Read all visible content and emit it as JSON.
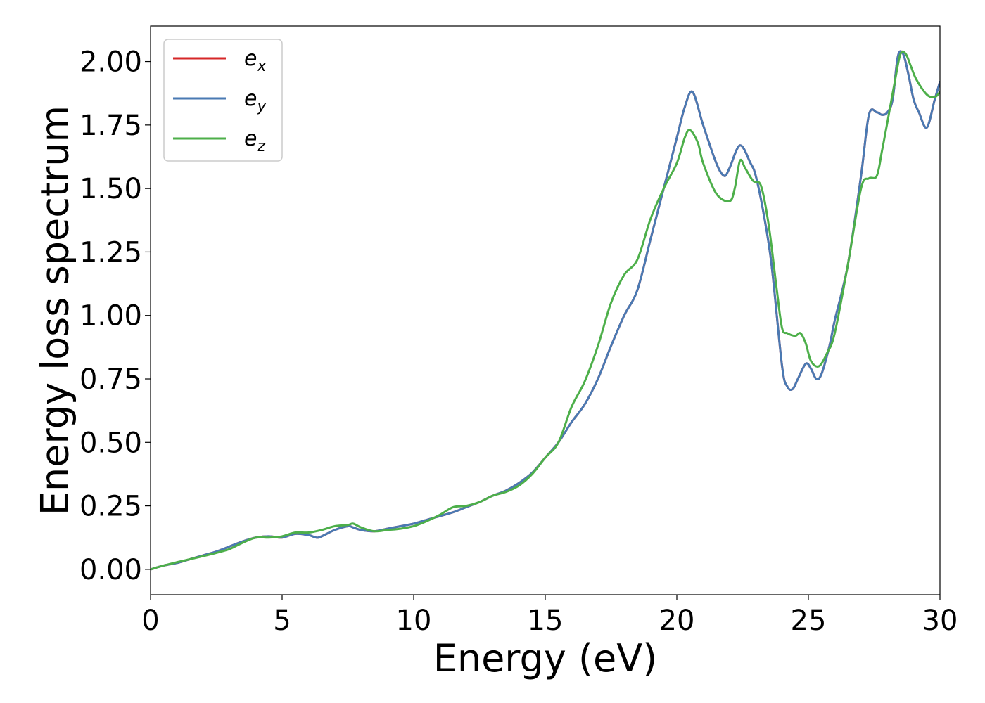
{
  "chart_data": {
    "type": "line",
    "title": "",
    "xlabel": "Energy (eV)",
    "ylabel": "Energy loss spectrum",
    "xlim": [
      0,
      30
    ],
    "ylim": [
      -0.1,
      2.14
    ],
    "xticks": [
      0,
      5,
      10,
      15,
      20,
      25,
      30
    ],
    "xtick_labels": [
      "0",
      "5",
      "10",
      "15",
      "20",
      "25",
      "30"
    ],
    "yticks": [
      0,
      0.25,
      0.5,
      0.75,
      1.0,
      1.25,
      1.5,
      1.75,
      2.0
    ],
    "ytick_labels": [
      "0.00",
      "0.25",
      "0.50",
      "0.75",
      "1.00",
      "1.25",
      "1.50",
      "1.75",
      "2.00"
    ],
    "grid": false,
    "legend_position": "top-left",
    "series": [
      {
        "name": "e_x",
        "label_base": "e",
        "label_sub": "x",
        "color": "#d62728",
        "x": [
          0,
          0.5,
          1,
          1.5,
          2,
          2.5,
          3,
          3.5,
          4,
          4.5,
          5,
          5.5,
          6,
          6.3,
          6.5,
          7,
          7.5,
          7.7,
          8,
          8.5,
          9,
          9.5,
          10,
          10.5,
          11,
          11.5,
          12,
          12.5,
          13,
          13.5,
          14,
          14.5,
          15,
          15.5,
          16,
          16.5,
          17,
          17.5,
          18,
          18.5,
          19,
          19.5,
          20,
          20.3,
          20.6,
          21,
          21.5,
          21.8,
          22,
          22.4,
          22.8,
          23,
          23.3,
          23.6,
          24,
          24.2,
          24.4,
          24.6,
          24.9,
          25.1,
          25.3,
          25.5,
          25.8,
          26,
          26.5,
          27,
          27.3,
          27.6,
          27.8,
          28,
          28.2,
          28.4,
          28.6,
          28.8,
          29,
          29.2,
          29.5,
          29.8,
          30
        ],
        "y": [
          0,
          0.015,
          0.025,
          0.04,
          0.055,
          0.07,
          0.09,
          0.11,
          0.125,
          0.13,
          0.125,
          0.14,
          0.135,
          0.125,
          0.13,
          0.155,
          0.17,
          0.165,
          0.155,
          0.15,
          0.16,
          0.17,
          0.18,
          0.195,
          0.21,
          0.225,
          0.245,
          0.265,
          0.29,
          0.31,
          0.34,
          0.38,
          0.44,
          0.5,
          0.58,
          0.65,
          0.75,
          0.88,
          1.0,
          1.1,
          1.3,
          1.5,
          1.7,
          1.82,
          1.88,
          1.75,
          1.6,
          1.55,
          1.58,
          1.67,
          1.6,
          1.55,
          1.4,
          1.2,
          0.8,
          0.72,
          0.71,
          0.75,
          0.81,
          0.79,
          0.75,
          0.77,
          0.88,
          0.98,
          1.2,
          1.55,
          1.79,
          1.8,
          1.79,
          1.8,
          1.85,
          2.02,
          2.03,
          1.95,
          1.85,
          1.8,
          1.74,
          1.85,
          1.92
        ]
      },
      {
        "name": "e_y",
        "label_base": "e",
        "label_sub": "y",
        "color": "#4a7ab3",
        "x": [
          0,
          0.5,
          1,
          1.5,
          2,
          2.5,
          3,
          3.5,
          4,
          4.5,
          5,
          5.5,
          6,
          6.3,
          6.5,
          7,
          7.5,
          7.7,
          8,
          8.5,
          9,
          9.5,
          10,
          10.5,
          11,
          11.5,
          12,
          12.5,
          13,
          13.5,
          14,
          14.5,
          15,
          15.5,
          16,
          16.5,
          17,
          17.5,
          18,
          18.5,
          19,
          19.5,
          20,
          20.3,
          20.6,
          21,
          21.5,
          21.8,
          22,
          22.4,
          22.8,
          23,
          23.3,
          23.6,
          24,
          24.2,
          24.4,
          24.6,
          24.9,
          25.1,
          25.3,
          25.5,
          25.8,
          26,
          26.5,
          27,
          27.3,
          27.6,
          27.8,
          28,
          28.2,
          28.4,
          28.6,
          28.8,
          29,
          29.2,
          29.5,
          29.8,
          30
        ],
        "y": [
          0,
          0.015,
          0.025,
          0.04,
          0.055,
          0.07,
          0.09,
          0.11,
          0.125,
          0.13,
          0.125,
          0.14,
          0.135,
          0.125,
          0.13,
          0.155,
          0.17,
          0.165,
          0.155,
          0.15,
          0.16,
          0.17,
          0.18,
          0.195,
          0.21,
          0.225,
          0.245,
          0.265,
          0.29,
          0.31,
          0.34,
          0.38,
          0.44,
          0.5,
          0.58,
          0.65,
          0.75,
          0.88,
          1.0,
          1.1,
          1.3,
          1.5,
          1.7,
          1.82,
          1.88,
          1.75,
          1.6,
          1.55,
          1.58,
          1.67,
          1.6,
          1.55,
          1.4,
          1.2,
          0.8,
          0.72,
          0.71,
          0.75,
          0.81,
          0.79,
          0.75,
          0.77,
          0.88,
          0.98,
          1.2,
          1.55,
          1.79,
          1.8,
          1.79,
          1.8,
          1.85,
          2.02,
          2.03,
          1.95,
          1.85,
          1.8,
          1.74,
          1.85,
          1.92
        ]
      },
      {
        "name": "e_z",
        "label_base": "e",
        "label_sub": "z",
        "color": "#4daf4a",
        "x": [
          0,
          0.5,
          1,
          1.5,
          2,
          2.5,
          3,
          3.5,
          4,
          4.5,
          5,
          5.5,
          6,
          6.5,
          7,
          7.5,
          7.7,
          8,
          8.5,
          9,
          9.5,
          10,
          10.5,
          11,
          11.5,
          12,
          12.5,
          13,
          13.5,
          14,
          14.5,
          15,
          15.5,
          16,
          16.5,
          17,
          17.5,
          18,
          18.5,
          19,
          19.5,
          20,
          20.3,
          20.5,
          20.8,
          21,
          21.5,
          22,
          22.2,
          22.4,
          22.6,
          22.9,
          23.2,
          23.5,
          23.8,
          24,
          24.2,
          24.5,
          24.7,
          24.9,
          25.1,
          25.4,
          25.7,
          26,
          26.5,
          27,
          27.3,
          27.6,
          27.8,
          28,
          28.3,
          28.5,
          28.7,
          28.9,
          29.1,
          29.5,
          29.8,
          30
        ],
        "y": [
          0,
          0.015,
          0.028,
          0.04,
          0.052,
          0.065,
          0.08,
          0.105,
          0.125,
          0.125,
          0.13,
          0.145,
          0.145,
          0.155,
          0.17,
          0.175,
          0.18,
          0.165,
          0.15,
          0.155,
          0.16,
          0.17,
          0.19,
          0.215,
          0.245,
          0.25,
          0.265,
          0.29,
          0.305,
          0.33,
          0.375,
          0.44,
          0.5,
          0.64,
          0.74,
          0.88,
          1.05,
          1.16,
          1.22,
          1.38,
          1.5,
          1.6,
          1.7,
          1.73,
          1.68,
          1.6,
          1.48,
          1.45,
          1.5,
          1.61,
          1.58,
          1.53,
          1.51,
          1.35,
          1.1,
          0.95,
          0.93,
          0.92,
          0.93,
          0.89,
          0.82,
          0.8,
          0.85,
          0.93,
          1.2,
          1.5,
          1.54,
          1.55,
          1.65,
          1.76,
          1.93,
          2.03,
          2.03,
          1.98,
          1.93,
          1.87,
          1.86,
          1.88
        ]
      }
    ]
  }
}
